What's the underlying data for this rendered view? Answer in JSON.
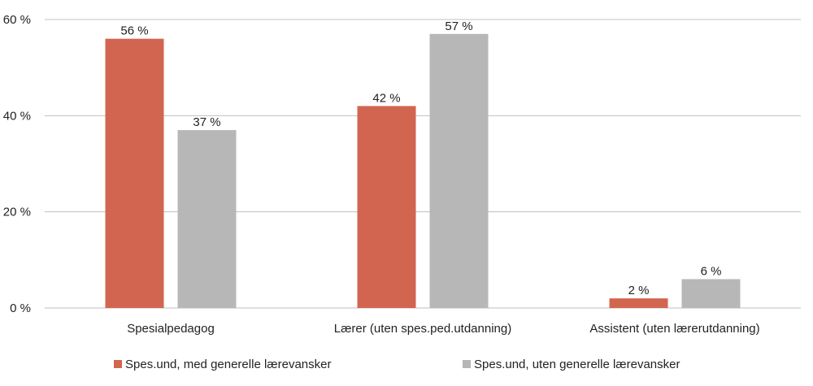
{
  "chart_data": {
    "type": "bar",
    "categories": [
      "Spesialpedagog",
      "Lærer (uten spes.ped.utdanning)",
      "Assistent (uten lærerutdanning)"
    ],
    "series": [
      {
        "name": "Spes.und, med generelle lærevansker",
        "color": "#d2654f",
        "values": [
          56,
          42,
          2
        ],
        "labels": [
          "56 %",
          "42 %",
          "2 %"
        ]
      },
      {
        "name": "Spes.und, uten generelle lærevansker",
        "color": "#b7b7b7",
        "values": [
          37,
          57,
          6
        ],
        "labels": [
          "37 %",
          "57 %",
          "6 %"
        ]
      }
    ],
    "ylim": [
      0,
      60
    ],
    "yticks": [
      0,
      20,
      40,
      60
    ],
    "ytick_labels": [
      "0 %",
      "20 %",
      "40 %",
      "60 %"
    ],
    "grid": true,
    "legend_position": "bottom"
  }
}
